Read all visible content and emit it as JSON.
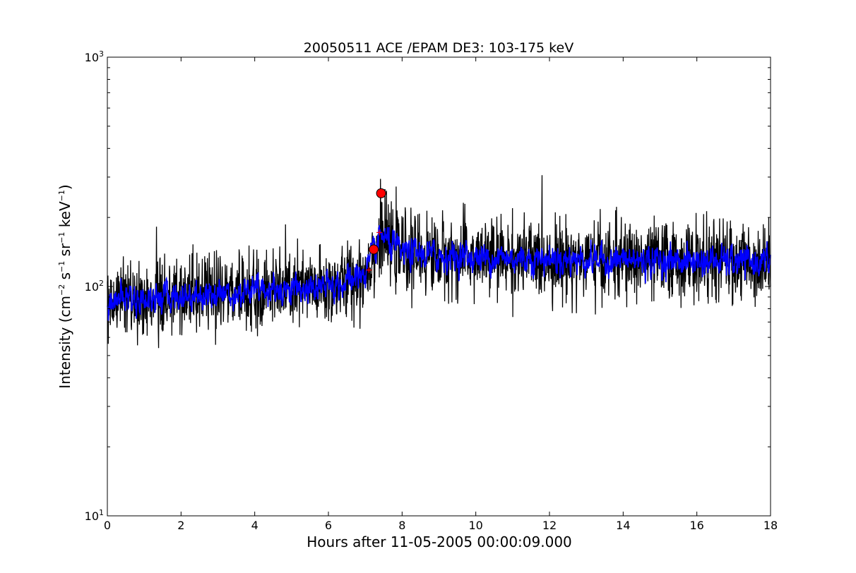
{
  "chart_data": {
    "type": "line",
    "title": "20050511 ACE /EPAM DE3: 103-175 keV",
    "xlabel": "Hours after 11-05-2005 00:00:09.000",
    "ylabel": "Intensity (cm⁻² s⁻¹ sr⁻¹ keV⁻¹)",
    "xlim": [
      0,
      18
    ],
    "ylim": [
      10,
      1000
    ],
    "yscale": "log",
    "grid": false,
    "x_ticks": [
      0,
      2,
      4,
      6,
      8,
      10,
      12,
      14,
      16,
      18
    ],
    "y_ticks": [
      10,
      100,
      1000
    ],
    "y_tick_labels": [
      {
        "base": "10",
        "exp": "1"
      },
      {
        "base": "10",
        "exp": "2"
      },
      {
        "base": "10",
        "exp": "3"
      }
    ],
    "series": [
      {
        "color": "#000000",
        "style": "raw",
        "x": [
          0,
          0.25,
          0.5,
          0.75,
          1,
          1.5,
          2,
          2.5,
          3,
          3.5,
          4,
          4.5,
          5,
          5.5,
          6,
          6.5,
          7,
          7.25,
          7.45,
          7.6,
          8,
          8.5,
          9,
          10,
          11,
          12,
          13,
          14,
          15,
          16,
          17,
          18
        ],
        "values": [
          88,
          87,
          90,
          89,
          88,
          90,
          91,
          92,
          93,
          94,
          96,
          97,
          98,
          97,
          99,
          104,
          115,
          140,
          170,
          155,
          140,
          138,
          136,
          134,
          133,
          132,
          131,
          130,
          130,
          129,
          128,
          128
        ]
      },
      {
        "color": "#0000ff",
        "style": "smoothed",
        "x": [
          0,
          0.25,
          0.5,
          0.75,
          1,
          1.5,
          2,
          2.5,
          3,
          3.5,
          4,
          4.5,
          5,
          5.5,
          6,
          6.5,
          7,
          7.25,
          7.45,
          7.6,
          8,
          8.5,
          9,
          10,
          11,
          12,
          13,
          14,
          15,
          16,
          17,
          18
        ],
        "values": [
          88,
          87,
          90,
          89,
          88,
          90,
          91,
          92,
          93,
          94,
          96,
          97,
          98,
          97,
          99,
          104,
          115,
          140,
          170,
          155,
          140,
          138,
          136,
          134,
          133,
          132,
          131,
          130,
          130,
          129,
          128,
          128
        ]
      }
    ],
    "markers": [
      {
        "type": "circle",
        "color": "#ff0000",
        "x": 7.23,
        "y": 145
      },
      {
        "type": "circle",
        "color": "#ff0000",
        "x": 7.43,
        "y": 255
      },
      {
        "type": "plus",
        "color": "#ff0000",
        "x": 7.1,
        "y": 118
      },
      {
        "type": "plus",
        "color": "#ff0000",
        "x": 7.38,
        "y": 172
      }
    ]
  }
}
